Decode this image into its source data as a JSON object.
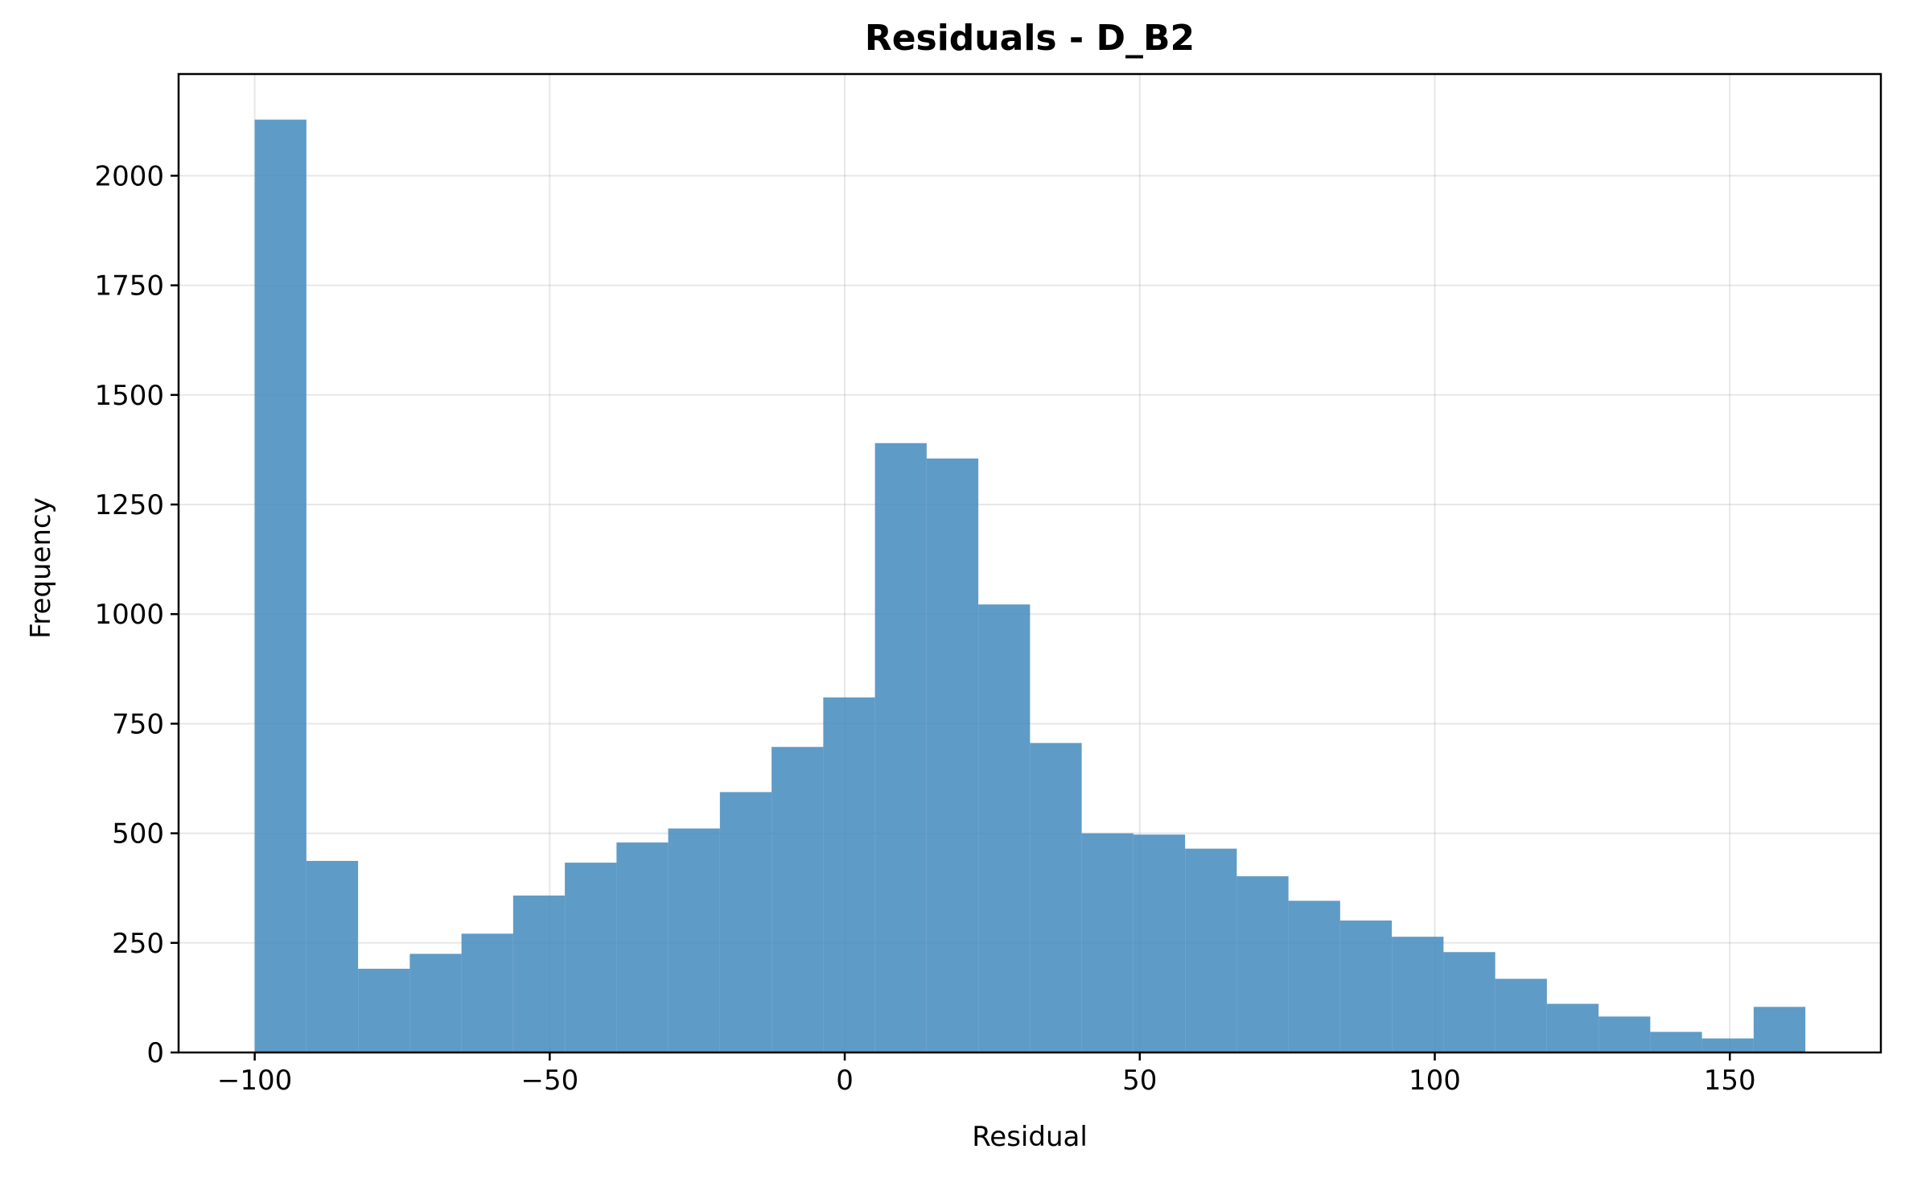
{
  "chart_data": {
    "type": "bar",
    "title": "Residuals - D_B2",
    "xlabel": "Residual",
    "ylabel": "Frequency",
    "xlim": [
      -112.9,
      175.6
    ],
    "ylim": [
      0,
      2232
    ],
    "grid": true,
    "bar_color": "#4389bd",
    "bin_edges": [
      -100,
      -91.24,
      -82.48,
      -73.72,
      -64.96,
      -56.2,
      -47.44,
      -38.68,
      -29.92,
      -21.16,
      -12.4,
      -3.64,
      5.12,
      13.88,
      22.64,
      31.4,
      40.16,
      48.92,
      57.68,
      66.44,
      75.2,
      83.96,
      92.72,
      101.48,
      110.24,
      119.0,
      127.76,
      136.52,
      145.28,
      154.04,
      162.8
    ],
    "values": [
      2128,
      437,
      191,
      225,
      271,
      358,
      433,
      479,
      511,
      594,
      697,
      810,
      1390,
      1355,
      1022,
      706,
      500,
      497,
      465,
      402,
      346,
      301,
      264,
      229,
      168,
      111,
      82,
      47,
      32,
      104
    ],
    "xticks": [
      -100,
      -50,
      0,
      50,
      100,
      150
    ],
    "xtick_labels": [
      "−100",
      "−50",
      "0",
      "50",
      "100",
      "150"
    ],
    "yticks": [
      0,
      250,
      500,
      750,
      1000,
      1250,
      1500,
      1750,
      2000
    ],
    "ytick_labels": [
      "0",
      "250",
      "500",
      "750",
      "1000",
      "1250",
      "1500",
      "1750",
      "2000"
    ]
  }
}
